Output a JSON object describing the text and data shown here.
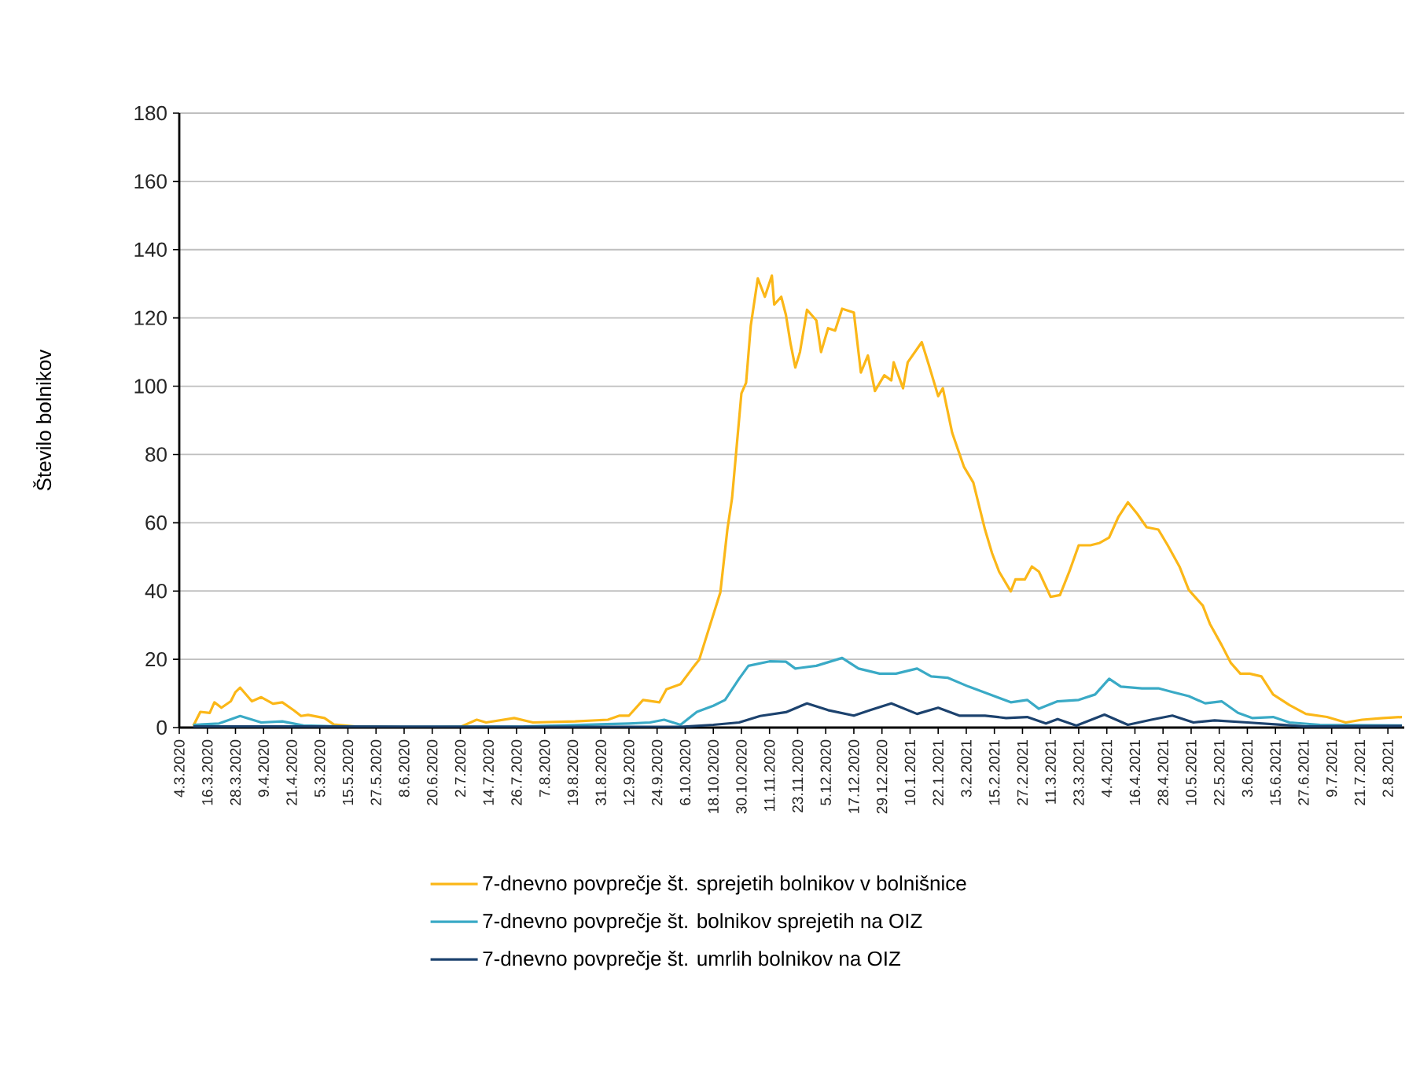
{
  "chart_data": {
    "type": "line",
    "ylabel": "Število bolnikov",
    "xlim": [
      "2020-03-04",
      "2021-08-09"
    ],
    "ylim": [
      0,
      180
    ],
    "yticks": [
      0,
      20,
      40,
      60,
      80,
      100,
      120,
      140,
      160,
      180
    ],
    "xticks": [
      {
        "value": "2020-03-04",
        "label": "4.3.2020"
      },
      {
        "value": "2020-03-16",
        "label": "16.3.2020"
      },
      {
        "value": "2020-03-28",
        "label": "28.3.2020"
      },
      {
        "value": "2020-04-09",
        "label": "9.4.2020"
      },
      {
        "value": "2020-04-21",
        "label": "21.4.2020"
      },
      {
        "value": "2020-05-03",
        "label": "5.3.2020"
      },
      {
        "value": "2020-05-15",
        "label": "15.5.2020"
      },
      {
        "value": "2020-05-27",
        "label": "27.5.2020"
      },
      {
        "value": "2020-06-08",
        "label": "8.6.2020"
      },
      {
        "value": "2020-06-20",
        "label": "20.6.2020"
      },
      {
        "value": "2020-07-02",
        "label": "2.7.2020"
      },
      {
        "value": "2020-07-14",
        "label": "14.7.2020"
      },
      {
        "value": "2020-07-26",
        "label": "26.7.2020"
      },
      {
        "value": "2020-08-07",
        "label": "7.8.2020"
      },
      {
        "value": "2020-08-19",
        "label": "19.8.2020"
      },
      {
        "value": "2020-08-31",
        "label": "31.8.2020"
      },
      {
        "value": "2020-09-12",
        "label": "12.9.2020"
      },
      {
        "value": "2020-09-24",
        "label": "24.9.2020"
      },
      {
        "value": "2020-10-06",
        "label": "6.10.2020"
      },
      {
        "value": "2020-10-18",
        "label": "18.10.2020"
      },
      {
        "value": "2020-10-30",
        "label": "30.10.2020"
      },
      {
        "value": "2020-11-11",
        "label": "11.11.2020"
      },
      {
        "value": "2020-11-23",
        "label": "23.11.2020"
      },
      {
        "value": "2020-12-05",
        "label": "5.12.2020"
      },
      {
        "value": "2020-12-17",
        "label": "17.12.2020"
      },
      {
        "value": "2020-12-29",
        "label": "29.12.2020"
      },
      {
        "value": "2021-01-10",
        "label": "10.1.2021"
      },
      {
        "value": "2021-01-22",
        "label": "22.1.2021"
      },
      {
        "value": "2021-02-03",
        "label": "3.2.2021"
      },
      {
        "value": "2021-02-15",
        "label": "15.2.2021"
      },
      {
        "value": "2021-02-27",
        "label": "27.2.2021"
      },
      {
        "value": "2021-03-11",
        "label": "11.3.2021"
      },
      {
        "value": "2021-03-23",
        "label": "23.3.2021"
      },
      {
        "value": "2021-04-04",
        "label": "4.4.2021"
      },
      {
        "value": "2021-04-16",
        "label": "16.4.2021"
      },
      {
        "value": "2021-04-28",
        "label": "28.4.2021"
      },
      {
        "value": "2021-05-10",
        "label": "10.5.2021"
      },
      {
        "value": "2021-05-22",
        "label": "22.5.2021"
      },
      {
        "value": "2021-06-03",
        "label": "3.6.2021"
      },
      {
        "value": "2021-06-15",
        "label": "15.6.2021"
      },
      {
        "value": "2021-06-27",
        "label": "27.6.2021"
      },
      {
        "value": "2021-07-09",
        "label": "9.7.2021"
      },
      {
        "value": "2021-07-21",
        "label": "21.7.2021"
      },
      {
        "value": "2021-08-02",
        "label": "2.8.2021"
      }
    ],
    "grid": "y",
    "legend": "bottom",
    "marker": "none",
    "line_style": "solid",
    "series": [
      {
        "name": "7-dnevno povprečje št. sprejetih bolnikov v bolnišnice",
        "color": "#fbb718",
        "x": [
          "2020-03-10",
          "2020-03-13",
          "2020-03-17",
          "2020-03-19",
          "2020-03-22",
          "2020-03-26",
          "2020-03-28",
          "2020-03-30",
          "2020-04-04",
          "2020-04-08",
          "2020-04-13",
          "2020-04-17",
          "2020-04-22",
          "2020-04-25",
          "2020-04-28",
          "2020-05-05",
          "2020-05-09",
          "2020-05-18",
          "2020-06-14",
          "2020-07-02",
          "2020-07-09",
          "2020-07-13",
          "2020-07-25",
          "2020-08-02",
          "2020-08-20",
          "2020-09-03",
          "2020-09-08",
          "2020-09-12",
          "2020-09-18",
          "2020-09-25",
          "2020-09-28",
          "2020-10-04",
          "2020-10-09",
          "2020-10-12",
          "2020-10-15",
          "2020-10-21",
          "2020-10-24",
          "2020-10-26",
          "2020-10-30",
          "2020-11-01",
          "2020-11-03",
          "2020-11-06",
          "2020-11-09",
          "2020-11-12",
          "2020-11-13",
          "2020-11-16",
          "2020-11-18",
          "2020-11-20",
          "2020-11-22",
          "2020-11-24",
          "2020-11-27",
          "2020-12-01",
          "2020-12-03",
          "2020-12-06",
          "2020-12-09",
          "2020-12-12",
          "2020-12-17",
          "2020-12-20",
          "2020-12-23",
          "2020-12-26",
          "2020-12-30",
          "2021-01-02",
          "2021-01-03",
          "2021-01-07",
          "2021-01-09",
          "2021-01-15",
          "2021-01-18",
          "2021-01-22",
          "2021-01-24",
          "2021-01-28",
          "2021-02-02",
          "2021-02-06",
          "2021-02-11",
          "2021-02-14",
          "2021-02-17",
          "2021-02-22",
          "2021-02-24",
          "2021-02-28",
          "2021-03-03",
          "2021-03-06",
          "2021-03-11",
          "2021-03-15",
          "2021-03-19",
          "2021-03-23",
          "2021-03-28",
          "2021-04-01",
          "2021-04-05",
          "2021-04-09",
          "2021-04-13",
          "2021-04-17",
          "2021-04-21",
          "2021-04-26",
          "2021-04-30",
          "2021-05-05",
          "2021-05-09",
          "2021-05-15",
          "2021-05-18",
          "2021-05-23",
          "2021-05-27",
          "2021-05-31",
          "2021-06-04",
          "2021-06-09",
          "2021-06-14",
          "2021-06-21",
          "2021-06-28",
          "2021-07-07",
          "2021-07-15",
          "2021-07-22",
          "2021-07-31",
          "2021-08-08"
        ],
        "values": [
          0.5,
          4.6,
          4.3,
          7.4,
          5.8,
          7.7,
          10.4,
          11.7,
          7.7,
          8.9,
          7,
          7.4,
          5,
          3.4,
          3.7,
          2.8,
          0.9,
          0.3,
          0,
          0.2,
          2.3,
          1.5,
          2.8,
          1.5,
          1.8,
          2.3,
          3.5,
          3.5,
          8.1,
          7.4,
          11.2,
          12.7,
          17.3,
          19.9,
          26.5,
          39.6,
          58,
          67.2,
          97.9,
          101,
          117.8,
          131.6,
          126.2,
          132.4,
          123.9,
          126.2,
          120.9,
          112.4,
          105.5,
          110,
          122.4,
          119.3,
          110,
          117,
          116.3,
          122.7,
          121.6,
          104,
          109,
          98.6,
          103.2,
          101.7,
          107,
          99.4,
          107,
          112.9,
          106.3,
          97.1,
          99.4,
          86.3,
          76.4,
          71.8,
          58,
          51.1,
          45.7,
          39.9,
          43.4,
          43.4,
          47.2,
          45.7,
          38.3,
          38.8,
          45.7,
          53.4,
          53.4,
          54.1,
          55.7,
          61.8,
          66,
          62.6,
          58.7,
          58,
          53.4,
          47.2,
          40.3,
          35.7,
          30.4,
          24.2,
          18.9,
          15.8,
          15.8,
          15,
          9.7,
          6.6,
          4,
          3.1,
          1.5,
          2.3,
          2.8,
          3.1
        ]
      },
      {
        "name": "7-dnevno povprečje št. bolnikov sprejetih na OIZ",
        "color": "#3aaac6",
        "x": [
          "2020-03-10",
          "2020-03-21",
          "2020-03-30",
          "2020-04-08",
          "2020-04-17",
          "2020-04-26",
          "2020-05-12",
          "2020-06-14",
          "2020-07-29",
          "2020-09-12",
          "2020-09-21",
          "2020-09-27",
          "2020-10-04",
          "2020-10-11",
          "2020-10-18",
          "2020-10-23",
          "2020-10-29",
          "2020-11-02",
          "2020-11-11",
          "2020-11-18",
          "2020-11-22",
          "2020-12-01",
          "2020-12-12",
          "2020-12-19",
          "2020-12-28",
          "2021-01-04",
          "2021-01-13",
          "2021-01-19",
          "2021-01-26",
          "2021-02-04",
          "2021-02-13",
          "2021-02-22",
          "2021-03-01",
          "2021-03-06",
          "2021-03-14",
          "2021-03-23",
          "2021-03-30",
          "2021-04-05",
          "2021-04-10",
          "2021-04-19",
          "2021-04-26",
          "2021-05-02",
          "2021-05-09",
          "2021-05-16",
          "2021-05-23",
          "2021-05-30",
          "2021-06-05",
          "2021-06-14",
          "2021-06-21",
          "2021-07-04",
          "2021-08-08"
        ],
        "values": [
          0.8,
          1.2,
          3.4,
          1.5,
          1.8,
          0.6,
          0.3,
          0.2,
          0.3,
          1.2,
          1.5,
          2.3,
          0.8,
          4.6,
          6.4,
          8.1,
          14.3,
          18.1,
          19.4,
          19.3,
          17.3,
          18.1,
          20.4,
          17.3,
          15.8,
          15.8,
          17.3,
          15,
          14.6,
          12,
          9.7,
          7.4,
          8.1,
          5.5,
          7.7,
          8.1,
          9.7,
          14.3,
          12,
          11.5,
          11.5,
          10.4,
          9.2,
          7.1,
          7.7,
          4.3,
          2.8,
          3.1,
          1.5,
          0.8,
          0.6
        ]
      },
      {
        "name": "7-dnevno povprečje št. umrlih bolnikov na OIZ",
        "color": "#1c426e",
        "x": [
          "2020-03-10",
          "2020-04-30",
          "2020-10-04",
          "2020-10-18",
          "2020-10-29",
          "2020-11-07",
          "2020-11-18",
          "2020-11-27",
          "2020-12-06",
          "2020-12-17",
          "2020-12-24",
          "2021-01-02",
          "2021-01-13",
          "2021-01-22",
          "2021-01-31",
          "2021-02-11",
          "2021-02-20",
          "2021-03-01",
          "2021-03-09",
          "2021-03-14",
          "2021-03-22",
          "2021-04-03",
          "2021-04-13",
          "2021-04-23",
          "2021-05-02",
          "2021-05-11",
          "2021-05-20",
          "2021-06-03",
          "2021-06-16",
          "2021-06-28",
          "2021-08-08"
        ],
        "values": [
          0.3,
          0.3,
          0.2,
          0.8,
          1.5,
          3.4,
          4.5,
          7.1,
          5.1,
          3.5,
          5.1,
          7.1,
          4,
          5.8,
          3.5,
          3.5,
          2.8,
          3.1,
          1.2,
          2.5,
          0.6,
          3.8,
          0.8,
          2.3,
          3.5,
          1.5,
          2.1,
          1.5,
          0.9,
          0.3,
          0.5
        ]
      }
    ]
  }
}
